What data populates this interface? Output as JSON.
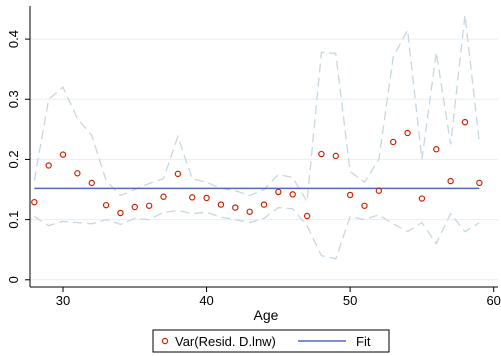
{
  "chart_data": {
    "type": "scatter",
    "title": "",
    "xlabel": "Age",
    "ylabel": "",
    "xlim": [
      27.7,
      60.3
    ],
    "ylim": [
      -0.012,
      0.455
    ],
    "xticks": [
      30,
      40,
      50,
      60
    ],
    "xtick_labels": [
      "30",
      "40",
      "50",
      "60"
    ],
    "yticks": [
      0,
      0.1,
      0.2,
      0.3,
      0.4
    ],
    "ytick_labels": [
      "0",
      "0.1",
      "0.2",
      "0.3",
      "0.4"
    ],
    "grid": true,
    "legend_position": "bottom",
    "colors": {
      "points": "#cc2200",
      "fit": "#5566cc",
      "band": "#c6d7e2",
      "grid": "#e8eef3"
    },
    "series": [
      {
        "name": "Var(Resid. D.lnw)",
        "kind": "scatter",
        "x": [
          28,
          29,
          30,
          31,
          32,
          33,
          34,
          35,
          36,
          37,
          38,
          39,
          40,
          41,
          42,
          43,
          44,
          45,
          46,
          47,
          48,
          49,
          50,
          51,
          52,
          53,
          54,
          55,
          56,
          57,
          58,
          59
        ],
        "y": [
          0.129,
          0.19,
          0.208,
          0.177,
          0.161,
          0.124,
          0.111,
          0.121,
          0.123,
          0.138,
          0.176,
          0.137,
          0.136,
          0.125,
          0.12,
          0.113,
          0.125,
          0.146,
          0.142,
          0.106,
          0.209,
          0.206,
          0.141,
          0.123,
          0.148,
          0.229,
          0.244,
          0.135,
          0.217,
          0.164,
          0.262,
          0.161
        ]
      },
      {
        "name": "Fit",
        "kind": "line",
        "x": [
          28,
          59
        ],
        "y": [
          0.152,
          0.152
        ]
      },
      {
        "name": "",
        "kind": "band-upper",
        "x": [
          28,
          29,
          30,
          31,
          32,
          33,
          34,
          35,
          36,
          37,
          38,
          39,
          40,
          41,
          42,
          43,
          44,
          45,
          46,
          47,
          48,
          49,
          50,
          51,
          52,
          53,
          54,
          55,
          56,
          57,
          58,
          59
        ],
        "y": [
          0.165,
          0.3,
          0.32,
          0.268,
          0.24,
          0.165,
          0.14,
          0.15,
          0.16,
          0.168,
          0.238,
          0.168,
          0.162,
          0.152,
          0.148,
          0.14,
          0.15,
          0.175,
          0.17,
          0.13,
          0.378,
          0.376,
          0.18,
          0.162,
          0.2,
          0.37,
          0.415,
          0.2,
          0.378,
          0.225,
          0.44,
          0.228
        ]
      },
      {
        "name": "",
        "kind": "band-lower",
        "x": [
          28,
          29,
          30,
          31,
          32,
          33,
          34,
          35,
          36,
          37,
          38,
          39,
          40,
          41,
          42,
          43,
          44,
          45,
          46,
          47,
          48,
          49,
          50,
          51,
          52,
          53,
          54,
          55,
          56,
          57,
          58,
          59
        ],
        "y": [
          0.105,
          0.09,
          0.097,
          0.095,
          0.093,
          0.1,
          0.092,
          0.102,
          0.1,
          0.112,
          0.115,
          0.11,
          0.112,
          0.104,
          0.1,
          0.095,
          0.102,
          0.12,
          0.118,
          0.09,
          0.04,
          0.035,
          0.105,
          0.1,
          0.108,
          0.093,
          0.08,
          0.095,
          0.06,
          0.11,
          0.08,
          0.095
        ]
      }
    ],
    "legend": [
      {
        "label": "Var(Resid. D.lnw)",
        "marker": "circle"
      },
      {
        "label": "Fit",
        "marker": "line"
      }
    ]
  }
}
